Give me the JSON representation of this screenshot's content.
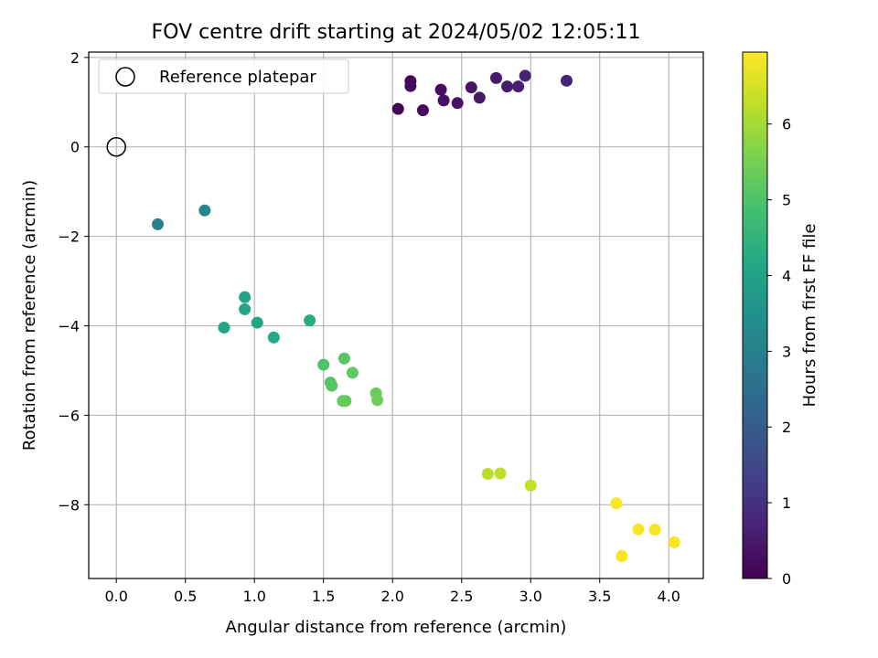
{
  "chart_data": {
    "type": "scatter",
    "title": "FOV centre drift starting at 2024/05/02 12:05:11",
    "xlabel": "Angular distance from reference (arcmin)",
    "ylabel": "Rotation from reference (arcmin)",
    "xlim": [
      -0.2,
      4.25
    ],
    "ylim": [
      -9.65,
      2.12
    ],
    "xticks": [
      0.0,
      0.5,
      1.0,
      1.5,
      2.0,
      2.5,
      3.0,
      3.5,
      4.0
    ],
    "xtick_labels": [
      "0.0",
      "0.5",
      "1.0",
      "1.5",
      "2.0",
      "2.5",
      "3.0",
      "3.5",
      "4.0"
    ],
    "yticks": [
      2,
      0,
      -2,
      -4,
      -6,
      -8
    ],
    "ytick_labels": [
      "2",
      "0",
      "−2",
      "−4",
      "−6",
      "−8"
    ],
    "grid": true,
    "legend": {
      "placement": "top-left",
      "entries": [
        "Reference platepar"
      ]
    },
    "reference_point": {
      "name": "Reference platepar",
      "x": 0.0,
      "y": 0.0
    },
    "colorbar": {
      "label": "Hours from first FF file",
      "colormap": "viridis",
      "range": [
        0,
        6.95
      ],
      "ticks": [
        0,
        1,
        2,
        3,
        4,
        5,
        6
      ],
      "tick_labels": [
        "0",
        "1",
        "2",
        "3",
        "4",
        "5",
        "6"
      ]
    },
    "points": [
      {
        "x": 2.04,
        "y": 0.85,
        "t": 0.05
      },
      {
        "x": 2.13,
        "y": 1.47,
        "t": 0.1
      },
      {
        "x": 2.13,
        "y": 1.36,
        "t": 0.15
      },
      {
        "x": 2.22,
        "y": 0.82,
        "t": 0.2
      },
      {
        "x": 2.35,
        "y": 1.28,
        "t": 0.25
      },
      {
        "x": 2.37,
        "y": 1.04,
        "t": 0.3
      },
      {
        "x": 2.47,
        "y": 0.98,
        "t": 0.35
      },
      {
        "x": 2.57,
        "y": 1.33,
        "t": 0.4
      },
      {
        "x": 2.63,
        "y": 1.1,
        "t": 0.45
      },
      {
        "x": 2.75,
        "y": 1.54,
        "t": 0.5
      },
      {
        "x": 2.83,
        "y": 1.35,
        "t": 0.55
      },
      {
        "x": 2.91,
        "y": 1.35,
        "t": 0.6
      },
      {
        "x": 2.96,
        "y": 1.59,
        "t": 0.65
      },
      {
        "x": 3.26,
        "y": 1.48,
        "t": 0.7
      },
      {
        "x": 0.3,
        "y": -1.73,
        "t": 3.0
      },
      {
        "x": 0.64,
        "y": -1.42,
        "t": 3.2
      },
      {
        "x": 0.93,
        "y": -3.36,
        "t": 4.0
      },
      {
        "x": 0.93,
        "y": -3.63,
        "t": 4.05
      },
      {
        "x": 0.78,
        "y": -4.04,
        "t": 4.1
      },
      {
        "x": 1.02,
        "y": -3.93,
        "t": 4.15
      },
      {
        "x": 1.14,
        "y": -4.26,
        "t": 4.2
      },
      {
        "x": 1.4,
        "y": -3.88,
        "t": 4.25
      },
      {
        "x": 1.5,
        "y": -4.87,
        "t": 5.0
      },
      {
        "x": 1.55,
        "y": -5.27,
        "t": 5.05
      },
      {
        "x": 1.56,
        "y": -5.34,
        "t": 5.1
      },
      {
        "x": 1.65,
        "y": -4.73,
        "t": 5.15
      },
      {
        "x": 1.71,
        "y": -5.05,
        "t": 5.2
      },
      {
        "x": 1.64,
        "y": -5.68,
        "t": 5.25
      },
      {
        "x": 1.66,
        "y": -5.68,
        "t": 5.3
      },
      {
        "x": 1.88,
        "y": -5.51,
        "t": 5.35
      },
      {
        "x": 1.89,
        "y": -5.66,
        "t": 5.4
      },
      {
        "x": 2.69,
        "y": -7.31,
        "t": 6.2
      },
      {
        "x": 2.78,
        "y": -7.3,
        "t": 6.25
      },
      {
        "x": 3.0,
        "y": -7.57,
        "t": 6.3
      },
      {
        "x": 3.62,
        "y": -7.97,
        "t": 6.9
      },
      {
        "x": 3.78,
        "y": -8.55,
        "t": 6.9
      },
      {
        "x": 3.9,
        "y": -8.56,
        "t": 6.9
      },
      {
        "x": 3.66,
        "y": -9.15,
        "t": 6.9
      },
      {
        "x": 4.04,
        "y": -8.84,
        "t": 6.9
      }
    ]
  }
}
